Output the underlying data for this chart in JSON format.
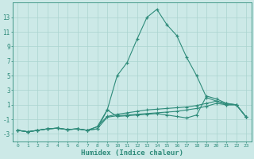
{
  "xlabel": "Humidex (Indice chaleur)",
  "x": [
    0,
    1,
    2,
    3,
    4,
    5,
    6,
    7,
    8,
    9,
    10,
    11,
    12,
    13,
    14,
    15,
    16,
    17,
    18,
    19,
    20,
    21,
    22,
    23
  ],
  "series_main": [
    -2.5,
    -2.7,
    -2.5,
    -2.3,
    -2.2,
    -2.4,
    -2.3,
    -2.5,
    -2.3,
    0.3,
    5.0,
    6.8,
    10.0,
    13.0,
    14.1,
    12.0,
    10.5,
    7.5,
    5.0,
    2.0,
    1.5,
    1.0,
    1.0,
    -0.7
  ],
  "series_a": [
    -2.5,
    -2.7,
    -2.5,
    -2.3,
    -2.2,
    -2.4,
    -2.3,
    -2.5,
    -2.3,
    -0.7,
    -0.5,
    -0.4,
    -0.3,
    -0.2,
    -0.1,
    0.0,
    0.1,
    0.3,
    0.5,
    0.8,
    1.2,
    1.0,
    1.0,
    -0.7
  ],
  "series_b": [
    -2.5,
    -2.7,
    -2.5,
    -2.3,
    -2.2,
    -2.4,
    -2.3,
    -2.5,
    -2.0,
    -0.6,
    -0.3,
    -0.1,
    0.1,
    0.3,
    0.4,
    0.5,
    0.6,
    0.7,
    0.9,
    1.2,
    1.5,
    1.2,
    1.0,
    -0.7
  ],
  "series_c": [
    -2.5,
    -2.7,
    -2.5,
    -2.3,
    -2.2,
    -2.4,
    -2.3,
    -2.5,
    -2.0,
    0.3,
    -0.6,
    -0.5,
    -0.4,
    -0.3,
    -0.2,
    -0.4,
    -0.6,
    -0.8,
    -0.4,
    2.2,
    1.8,
    1.2,
    1.0,
    -0.7
  ],
  "line_color": "#2e8b7a",
  "bg_color": "#cce9e7",
  "grid_color": "#aad4d0",
  "ylim": [
    -4,
    15
  ],
  "yticks": [
    -3,
    -1,
    1,
    3,
    5,
    7,
    9,
    11,
    13
  ],
  "xlim": [
    -0.5,
    23.5
  ],
  "xticks": [
    0,
    1,
    2,
    3,
    4,
    5,
    6,
    7,
    8,
    9,
    10,
    11,
    12,
    13,
    14,
    15,
    16,
    17,
    18,
    19,
    20,
    21,
    22,
    23
  ]
}
